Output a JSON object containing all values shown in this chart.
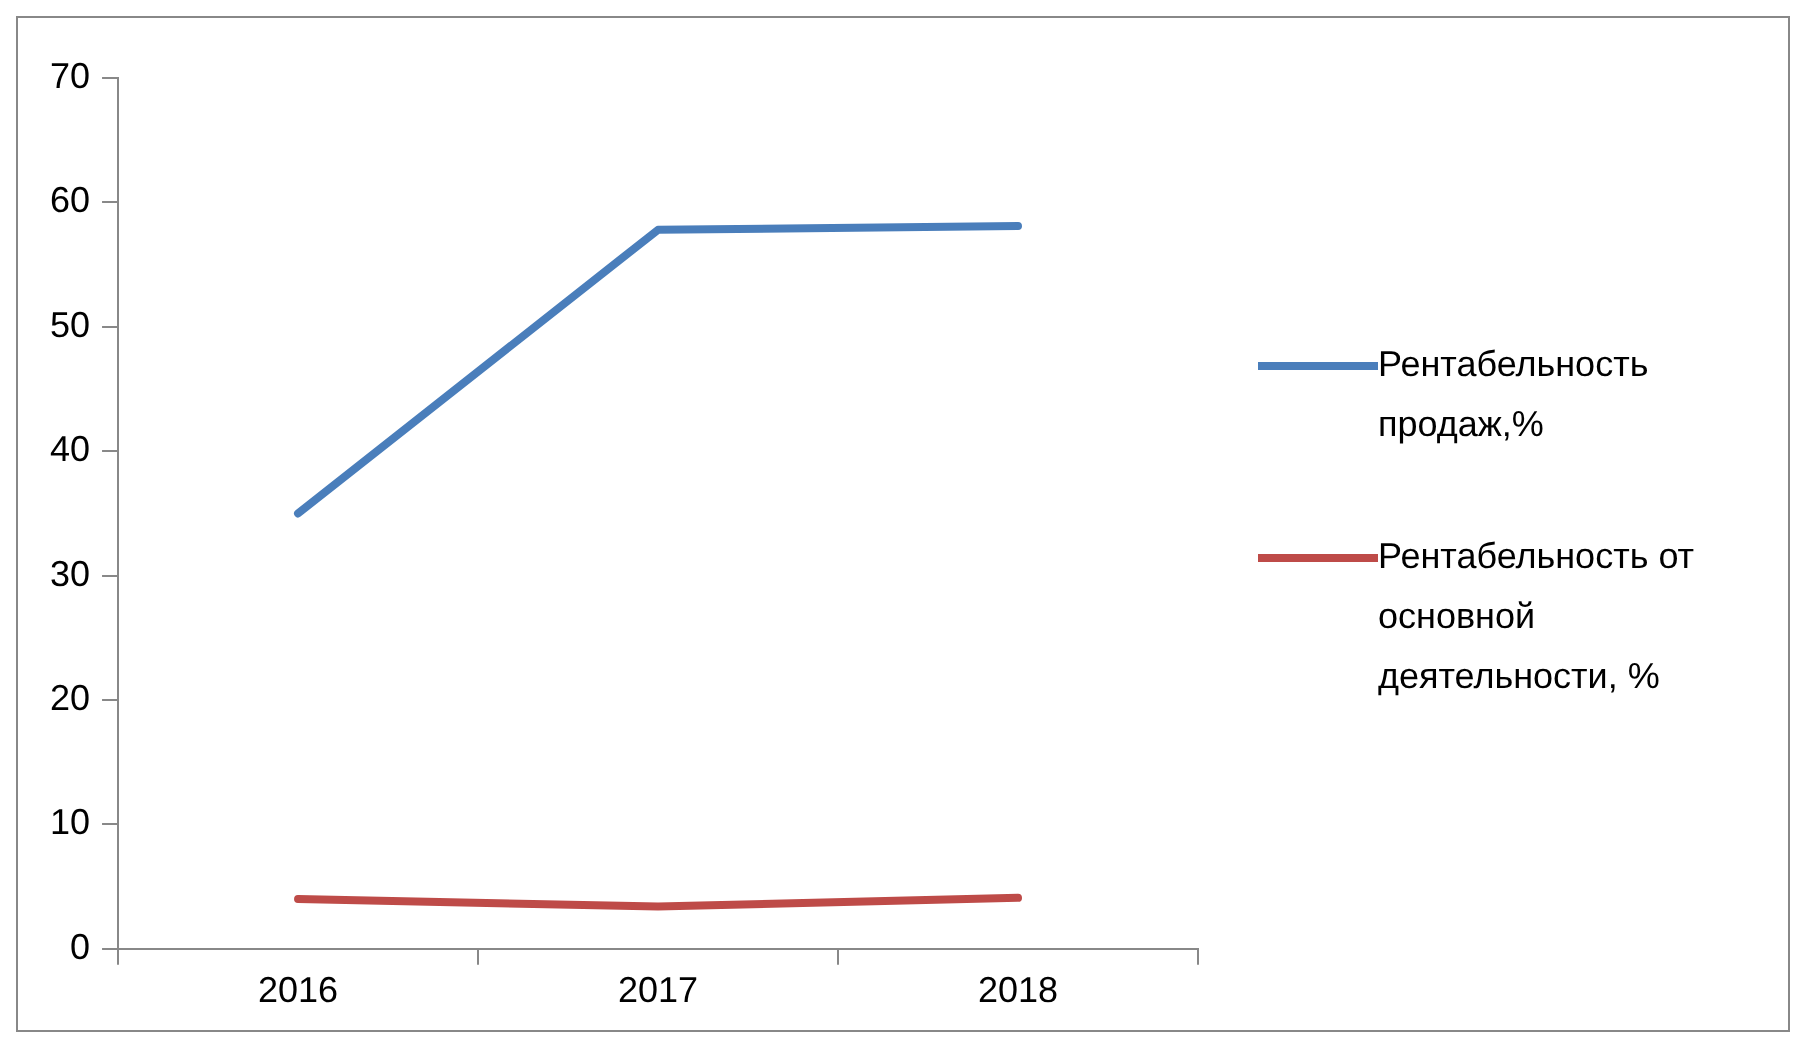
{
  "chart_data": {
    "type": "line",
    "categories": [
      "2016",
      "2017",
      "2018"
    ],
    "series": [
      {
        "name": "Рентабельность продаж,%",
        "color": "#4a7ebb",
        "values": [
          35,
          57.8,
          58.1
        ]
      },
      {
        "name": "Рентабельность от основной деятельности, %",
        "color": "#be4b48",
        "values": [
          4,
          3.4,
          4.1
        ]
      }
    ],
    "ylim": [
      0,
      70
    ],
    "yticks": [
      0,
      10,
      20,
      30,
      40,
      50,
      60,
      70
    ],
    "grid": false,
    "legend": "right",
    "marker": "none",
    "line_style": "solid"
  }
}
